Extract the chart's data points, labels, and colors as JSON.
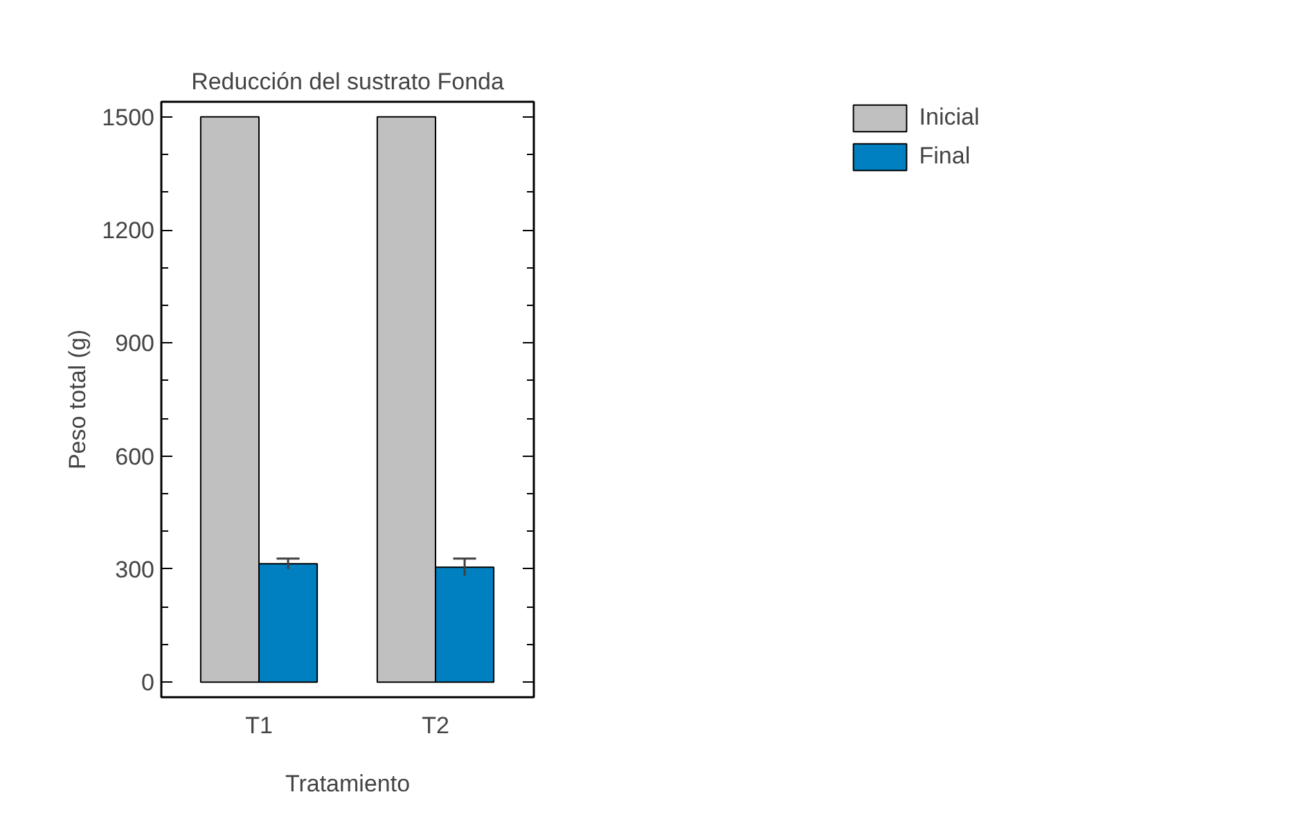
{
  "chart_data": {
    "type": "bar",
    "title": "Reducción del sustrato Fonda",
    "xlabel": "Tratamiento",
    "ylabel": "Peso total (g)",
    "categories": [
      "T1",
      "T2"
    ],
    "series": [
      {
        "name": "Inicial",
        "color": "#c0c0c0",
        "values": [
          1500,
          1500
        ]
      },
      {
        "name": "Final",
        "color": "#0080c0",
        "values": [
          314,
          305
        ],
        "errors": [
          14,
          23
        ]
      }
    ],
    "ylim": [
      -40,
      1540
    ],
    "yticks": [
      0,
      300,
      600,
      900,
      1200,
      1500
    ],
    "grid": false,
    "legend": "right"
  }
}
